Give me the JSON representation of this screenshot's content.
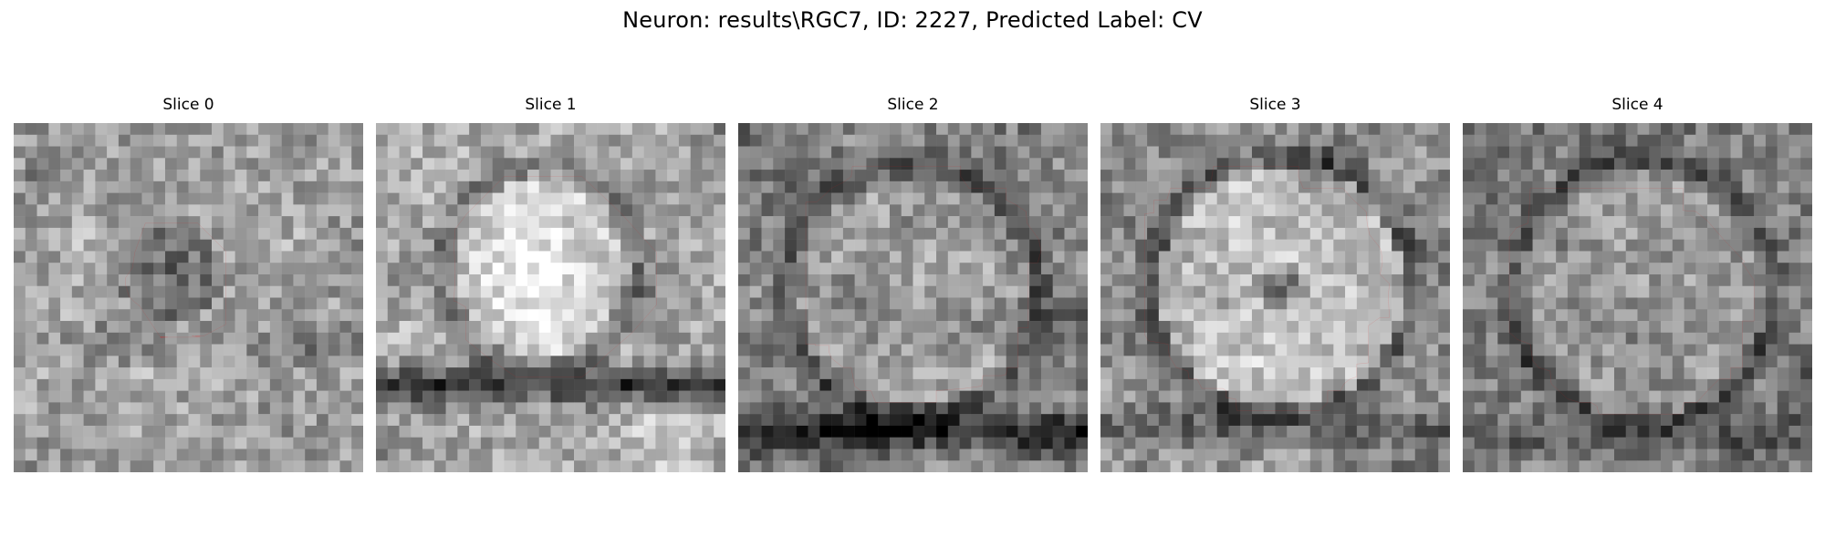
{
  "figure": {
    "title": "Neuron: results\\RGC7, ID: 2227, Predicted Label: CV"
  },
  "slices": [
    {
      "title": "Slice 0",
      "seed": 11,
      "base": 0.62,
      "blob": {
        "type": "dark-disc",
        "cx": 13.5,
        "cy": 13.0,
        "r": 4.6,
        "strength": 0.22
      },
      "band": {
        "y": 19,
        "strength": 0.12
      }
    },
    {
      "title": "Slice 1",
      "seed": 23,
      "base": 0.66,
      "blob": {
        "type": "bright-cell",
        "cx": 14.0,
        "cy": 12.5,
        "r": 7.5,
        "strength": 0.28
      },
      "band": {
        "y": 22.5,
        "strength": 0.45
      }
    },
    {
      "title": "Slice 2",
      "seed": 37,
      "base": 0.5,
      "blob": {
        "type": "ring",
        "cx": 15.0,
        "cy": 14.5,
        "r": 10.0,
        "strength": 0.18
      },
      "band": {
        "y": 26.5,
        "strength": 0.4
      }
    },
    {
      "title": "Slice 3",
      "seed": 41,
      "base": 0.55,
      "blob": {
        "type": "ring-bright",
        "cx": 15.5,
        "cy": 14.0,
        "r": 10.5,
        "strength": 0.3
      },
      "band": {
        "y": 26.0,
        "strength": 0.18
      }
    },
    {
      "title": "Slice 4",
      "seed": 53,
      "base": 0.5,
      "blob": {
        "type": "ring",
        "cx": 15.5,
        "cy": 14.5,
        "r": 10.5,
        "strength": 0.15
      },
      "band": {
        "y": 27.0,
        "strength": 0.2
      }
    }
  ],
  "colors": {
    "contour": "#e41b1b",
    "background": "#ffffff"
  }
}
